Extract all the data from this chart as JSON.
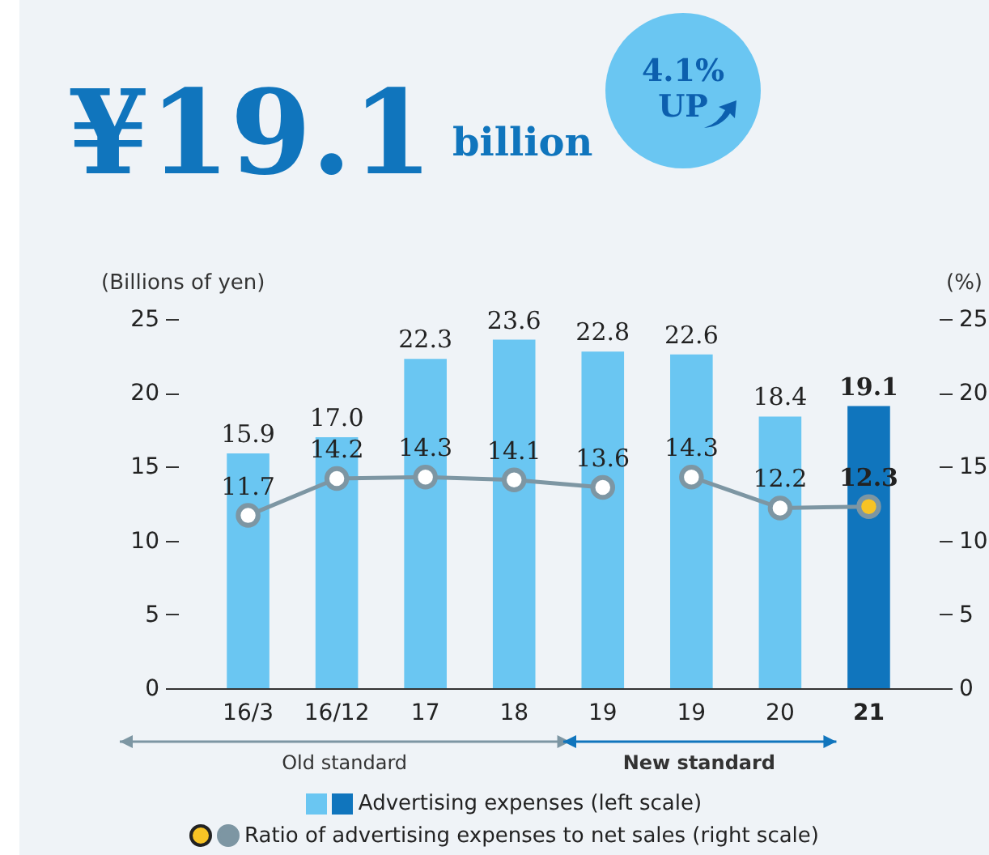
{
  "chart_data": {
    "type": "bar",
    "title": "¥19.1 billion",
    "subtitle": "4.1% UP",
    "ylabel": "(Billions of yen)",
    "y2label": "(%)",
    "categories": [
      "16/3",
      "16/12",
      "17",
      "18",
      "19",
      "19",
      "20",
      "21"
    ],
    "series": [
      {
        "name": "Advertising expenses (left scale)",
        "color": "#6ac6f2",
        "colors": [
          "#6ac6f2",
          "#6ac6f2",
          "#6ac6f2",
          "#6ac6f2",
          "#6ac6f2",
          "#6ac6f2",
          "#6ac6f2",
          "#1075bd"
        ],
        "values": [
          15.9,
          17.0,
          22.3,
          23.6,
          22.8,
          22.6,
          18.4,
          19.1
        ],
        "value_labels": [
          "15.9",
          "17.0",
          "22.3",
          "23.6",
          "22.8",
          "22.6",
          "18.4",
          "19.1"
        ]
      },
      {
        "name": "Ratio of advertising expenses to net sales (right scale)",
        "type": "line",
        "axis": "y2",
        "color": "#7d96a3",
        "values": [
          11.7,
          14.2,
          14.3,
          14.1,
          13.6,
          null,
          null,
          null
        ],
        "value_labels": [
          "11.7",
          "14.2",
          "14.3",
          "14.1",
          "13.6",
          null,
          null,
          null
        ]
      },
      {
        "type": "line",
        "axis": "y2",
        "color": "#7d96a3",
        "colors": [
          null,
          null,
          null,
          null,
          null,
          "#ffffff",
          "#ffffff",
          "#f7c325"
        ],
        "values": [
          null,
          null,
          null,
          null,
          null,
          14.3,
          12.2,
          12.3
        ],
        "value_labels": [
          null,
          null,
          null,
          null,
          null,
          "14.3",
          "12.2",
          "12.3"
        ]
      }
    ],
    "ylim": [
      0,
      25
    ],
    "yticks": [
      0,
      5,
      10,
      15,
      20,
      25
    ],
    "y2lim": [
      0,
      25
    ],
    "y2ticks": [
      0,
      5,
      10,
      15,
      20,
      25
    ],
    "marker": "circle",
    "legend": "bottom",
    "annotations": [
      "Old standard",
      "New standard"
    ]
  }
}
